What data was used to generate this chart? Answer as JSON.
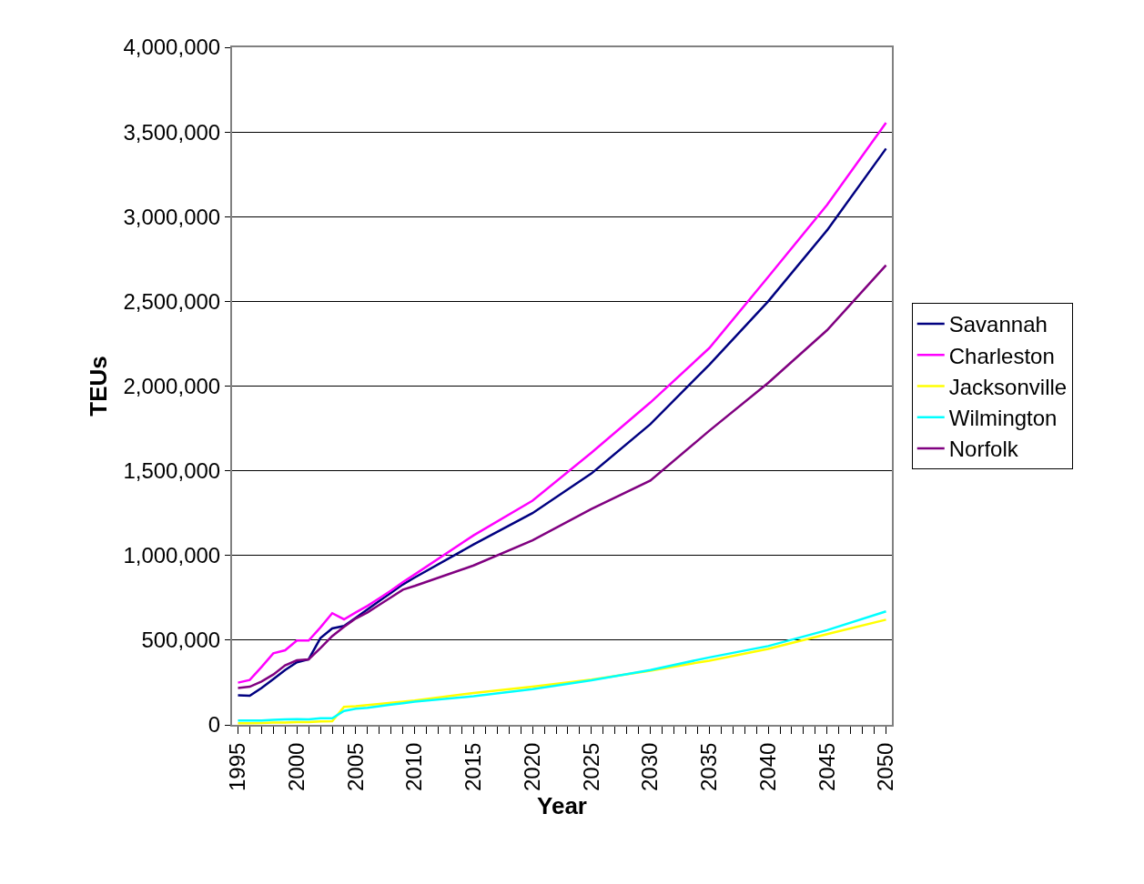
{
  "chart_data": {
    "type": "line",
    "xlabel": "Year",
    "ylabel": "TEUs",
    "x": [
      1995,
      1996,
      1997,
      1998,
      1999,
      2000,
      2001,
      2002,
      2003,
      2004,
      2005,
      2006,
      2007,
      2008,
      2009,
      2010,
      2015,
      2020,
      2025,
      2030,
      2035,
      2040,
      2045,
      2050
    ],
    "series": [
      {
        "name": "Savannah",
        "color": "#000080",
        "values": [
          175000,
          172000,
          217000,
          270000,
          324000,
          369000,
          387000,
          512000,
          569000,
          584000,
          632000,
          682000,
          732000,
          780000,
          829000,
          870000,
          1065000,
          1250000,
          1484000,
          1775000,
          2126000,
          2500000,
          2920000,
          3402000
        ]
      },
      {
        "name": "Charleston",
        "color": "#ff00ff",
        "values": [
          249000,
          265000,
          342000,
          422000,
          440000,
          498000,
          498000,
          575000,
          659000,
          623000,
          664000,
          703000,
          748000,
          793000,
          843000,
          888000,
          1119000,
          1323000,
          1607000,
          1903000,
          2224000,
          2644000,
          3070000,
          3554000
        ]
      },
      {
        "name": "Jacksonville",
        "color": "#ffff00",
        "values": [
          9000,
          9000,
          11000,
          13000,
          14000,
          16000,
          16000,
          20000,
          21000,
          106000,
          110000,
          117000,
          123000,
          130000,
          137000,
          144000,
          188000,
          225000,
          267000,
          320000,
          379000,
          448000,
          536000,
          621000
        ]
      },
      {
        "name": "Wilmington",
        "color": "#00ffff",
        "values": [
          25000,
          25000,
          26000,
          30000,
          32000,
          34000,
          32000,
          39000,
          39000,
          82000,
          95000,
          101000,
          110000,
          119000,
          128000,
          137000,
          169000,
          211000,
          263000,
          324000,
          398000,
          465000,
          559000,
          670000
        ]
      },
      {
        "name": "Norfolk",
        "color": "#800080",
        "values": [
          217000,
          225000,
          256000,
          297000,
          351000,
          381000,
          387000,
          453000,
          524000,
          578000,
          628000,
          664000,
          709000,
          753000,
          798000,
          820000,
          941000,
          1089000,
          1275000,
          1442000,
          1736000,
          2019000,
          2330000,
          2713000
        ]
      }
    ],
    "xlim": [
      1994.5,
      2050.5
    ],
    "xticks": [
      1995,
      {
        "value": 1996,
        "label": null
      },
      {
        "value": 1997,
        "label": null
      },
      {
        "value": 1998,
        "label": null
      },
      {
        "value": 1999,
        "label": null
      },
      2000,
      {
        "value": 2001,
        "label": null
      },
      {
        "value": 2002,
        "label": null
      },
      {
        "value": 2003,
        "label": null
      },
      {
        "value": 2004,
        "label": null
      },
      2005,
      {
        "value": 2006,
        "label": null
      },
      {
        "value": 2007,
        "label": null
      },
      {
        "value": 2008,
        "label": null
      },
      {
        "value": 2009,
        "label": null
      },
      2010,
      {
        "value": 2011,
        "label": null
      },
      {
        "value": 2012,
        "label": null
      },
      {
        "value": 2013,
        "label": null
      },
      {
        "value": 2014,
        "label": null
      },
      2015,
      {
        "value": 2016,
        "label": null
      },
      {
        "value": 2017,
        "label": null
      },
      {
        "value": 2018,
        "label": null
      },
      {
        "value": 2019,
        "label": null
      },
      2020,
      {
        "value": 2021,
        "label": null
      },
      {
        "value": 2022,
        "label": null
      },
      {
        "value": 2023,
        "label": null
      },
      {
        "value": 2024,
        "label": null
      },
      2025,
      {
        "value": 2026,
        "label": null
      },
      {
        "value": 2027,
        "label": null
      },
      {
        "value": 2028,
        "label": null
      },
      {
        "value": 2029,
        "label": null
      },
      2030,
      {
        "value": 2031,
        "label": null
      },
      {
        "value": 2032,
        "label": null
      },
      {
        "value": 2033,
        "label": null
      },
      {
        "value": 2034,
        "label": null
      },
      2035,
      {
        "value": 2036,
        "label": null
      },
      {
        "value": 2037,
        "label": null
      },
      {
        "value": 2038,
        "label": null
      },
      {
        "value": 2039,
        "label": null
      },
      2040,
      {
        "value": 2041,
        "label": null
      },
      {
        "value": 2042,
        "label": null
      },
      {
        "value": 2043,
        "label": null
      },
      {
        "value": 2044,
        "label": null
      },
      2045,
      {
        "value": 2046,
        "label": null
      },
      {
        "value": 2047,
        "label": null
      },
      {
        "value": 2048,
        "label": null
      },
      {
        "value": 2049,
        "label": null
      },
      2050
    ],
    "ylim": [
      0,
      4000000
    ],
    "yticks": [
      {
        "value": 0,
        "label": "0"
      },
      {
        "value": 500000,
        "label": "500,000"
      },
      {
        "value": 1000000,
        "label": "1,000,000"
      },
      {
        "value": 1500000,
        "label": "1,500,000"
      },
      {
        "value": 2000000,
        "label": "2,000,000"
      },
      {
        "value": 2500000,
        "label": "2,500,000"
      },
      {
        "value": 3000000,
        "label": "3,000,000"
      },
      {
        "value": 3500000,
        "label": "3,500,000"
      },
      {
        "value": 4000000,
        "label": "4,000,000"
      }
    ],
    "grid": "y",
    "legend": "right",
    "marker": "none",
    "line_style": "solid"
  }
}
